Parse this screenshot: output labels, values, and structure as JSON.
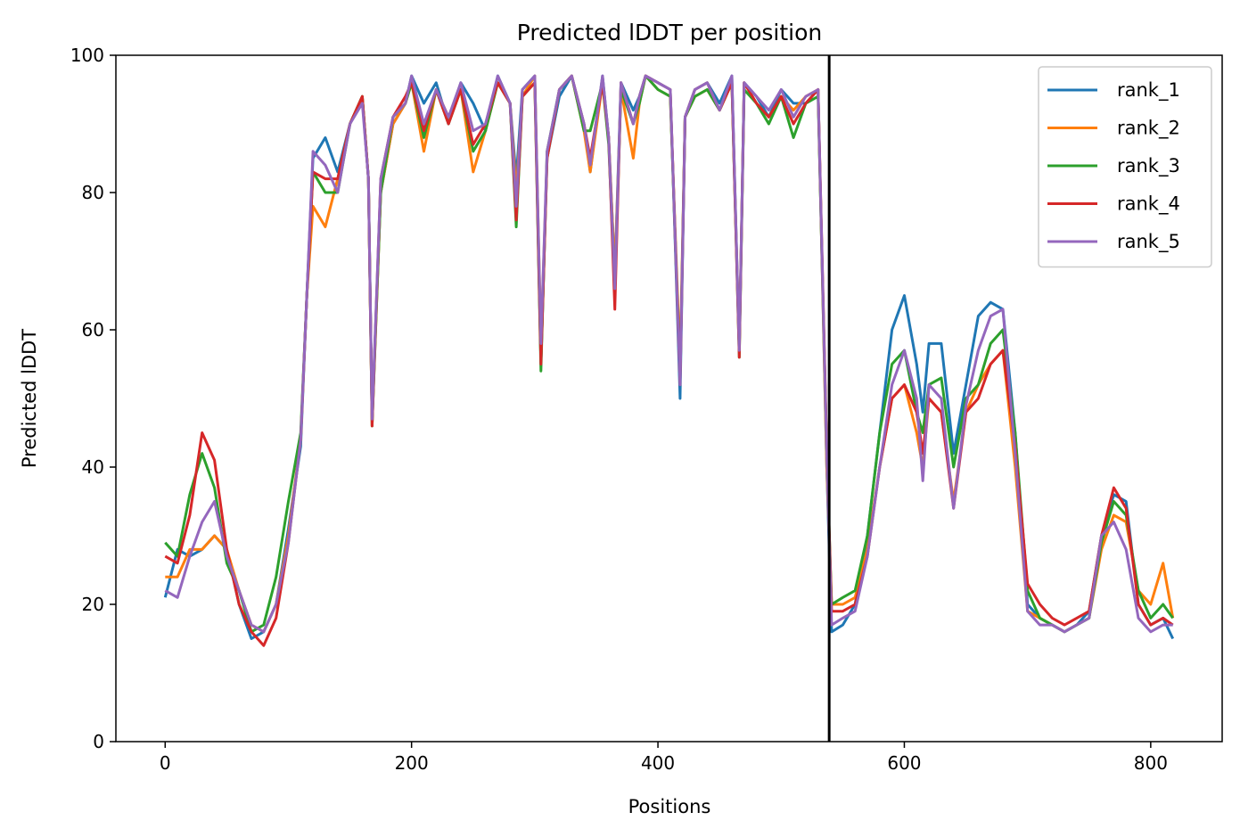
{
  "chart_data": {
    "type": "line",
    "title": "Predicted lDDT per position",
    "xlabel": "Positions",
    "ylabel": "Predicted lDDT",
    "xlim": [
      -40,
      858
    ],
    "ylim": [
      0,
      100
    ],
    "xticks": [
      0,
      200,
      400,
      600,
      800
    ],
    "yticks": [
      0,
      20,
      40,
      60,
      80,
      100
    ],
    "grid": false,
    "legend_position": "upper-right",
    "vline": {
      "x": 539,
      "color": "#000000"
    },
    "x": [
      0,
      10,
      20,
      30,
      40,
      50,
      60,
      70,
      80,
      90,
      100,
      110,
      115,
      120,
      130,
      140,
      150,
      160,
      165,
      168,
      175,
      185,
      195,
      200,
      210,
      220,
      230,
      240,
      250,
      260,
      270,
      280,
      285,
      290,
      300,
      305,
      310,
      320,
      330,
      340,
      345,
      355,
      360,
      365,
      370,
      380,
      385,
      390,
      400,
      410,
      418,
      422,
      430,
      440,
      450,
      460,
      466,
      470,
      480,
      490,
      500,
      510,
      520,
      530,
      537,
      541,
      550,
      560,
      570,
      580,
      590,
      600,
      610,
      615,
      620,
      630,
      640,
      650,
      660,
      670,
      680,
      690,
      700,
      710,
      720,
      730,
      740,
      750,
      760,
      770,
      780,
      790,
      800,
      810,
      818
    ],
    "series": [
      {
        "name": "rank_1",
        "color": "#1f77b4",
        "values": [
          21,
          28,
          27,
          28,
          30,
          28,
          20,
          15,
          16,
          20,
          31,
          43,
          65,
          85,
          88,
          83,
          90,
          94,
          82,
          47,
          80,
          90,
          93,
          97,
          93,
          96,
          90,
          96,
          93,
          89,
          97,
          93,
          82,
          95,
          97,
          55,
          85,
          94,
          97,
          90,
          83,
          97,
          88,
          68,
          96,
          92,
          94,
          97,
          96,
          95,
          50,
          91,
          95,
          96,
          93,
          97,
          57,
          96,
          94,
          91,
          95,
          93,
          93,
          95,
          40,
          16,
          17,
          20,
          30,
          45,
          60,
          65,
          55,
          48,
          58,
          58,
          42,
          52,
          62,
          64,
          63,
          45,
          20,
          18,
          17,
          16,
          17,
          19,
          30,
          36,
          35,
          20,
          17,
          18,
          15
        ]
      },
      {
        "name": "rank_2",
        "color": "#ff7f0e",
        "values": [
          24,
          24,
          28,
          28,
          30,
          28,
          22,
          17,
          16,
          20,
          30,
          44,
          65,
          78,
          75,
          82,
          90,
          94,
          82,
          46,
          80,
          90,
          93,
          96,
          86,
          95,
          91,
          95,
          83,
          89,
          96,
          93,
          80,
          94,
          97,
          58,
          85,
          95,
          97,
          89,
          83,
          96,
          88,
          68,
          95,
          85,
          93,
          97,
          95,
          94,
          55,
          91,
          94,
          95,
          92,
          96,
          57,
          96,
          93,
          91,
          94,
          92,
          94,
          95,
          40,
          20,
          20,
          21,
          28,
          40,
          50,
          52,
          45,
          40,
          50,
          48,
          35,
          48,
          52,
          55,
          57,
          40,
          19,
          18,
          17,
          16,
          17,
          18,
          28,
          33,
          32,
          22,
          20,
          26,
          18
        ]
      },
      {
        "name": "rank_3",
        "color": "#2ca02c",
        "values": [
          29,
          27,
          36,
          42,
          37,
          26,
          22,
          16,
          17,
          24,
          35,
          45,
          65,
          83,
          80,
          80,
          90,
          94,
          82,
          46,
          80,
          91,
          93,
          96,
          88,
          95,
          90,
          95,
          86,
          89,
          96,
          93,
          75,
          94,
          96,
          54,
          86,
          95,
          97,
          89,
          89,
          96,
          87,
          66,
          95,
          90,
          93,
          97,
          95,
          94,
          53,
          91,
          94,
          95,
          92,
          96,
          56,
          95,
          93,
          90,
          94,
          88,
          93,
          94,
          42,
          20,
          21,
          22,
          30,
          45,
          55,
          57,
          48,
          45,
          52,
          53,
          40,
          50,
          52,
          58,
          60,
          45,
          22,
          18,
          17,
          16,
          17,
          18,
          29,
          35,
          33,
          22,
          18,
          20,
          18
        ]
      },
      {
        "name": "rank_4",
        "color": "#d62728",
        "values": [
          27,
          26,
          33,
          45,
          41,
          28,
          20,
          16,
          14,
          18,
          29,
          44,
          65,
          83,
          82,
          82,
          90,
          94,
          82,
          46,
          82,
          91,
          94,
          96,
          89,
          95,
          90,
          95,
          87,
          90,
          96,
          93,
          76,
          94,
          96,
          55,
          85,
          95,
          97,
          90,
          85,
          96,
          88,
          63,
          96,
          90,
          94,
          97,
          96,
          95,
          52,
          91,
          95,
          96,
          92,
          96,
          56,
          96,
          93,
          91,
          94,
          90,
          93,
          95,
          43,
          19,
          19,
          20,
          27,
          40,
          50,
          52,
          48,
          42,
          50,
          48,
          34,
          48,
          50,
          55,
          57,
          43,
          23,
          20,
          18,
          17,
          18,
          19,
          30,
          37,
          34,
          20,
          17,
          18,
          17
        ]
      },
      {
        "name": "rank_5",
        "color": "#9467bd",
        "values": [
          22,
          21,
          27,
          32,
          35,
          27,
          22,
          17,
          16,
          20,
          29,
          44,
          65,
          86,
          84,
          80,
          90,
          93,
          82,
          47,
          82,
          91,
          93,
          97,
          90,
          95,
          91,
          96,
          89,
          90,
          97,
          93,
          78,
          95,
          97,
          58,
          86,
          95,
          97,
          90,
          84,
          97,
          88,
          66,
          96,
          90,
          94,
          97,
          96,
          95,
          52,
          91,
          95,
          96,
          92,
          97,
          57,
          96,
          94,
          92,
          95,
          91,
          94,
          95,
          42,
          17,
          18,
          19,
          27,
          40,
          52,
          57,
          50,
          38,
          52,
          50,
          34,
          49,
          57,
          62,
          63,
          42,
          19,
          17,
          17,
          16,
          17,
          18,
          30,
          32,
          28,
          18,
          16,
          17,
          17
        ]
      }
    ]
  }
}
